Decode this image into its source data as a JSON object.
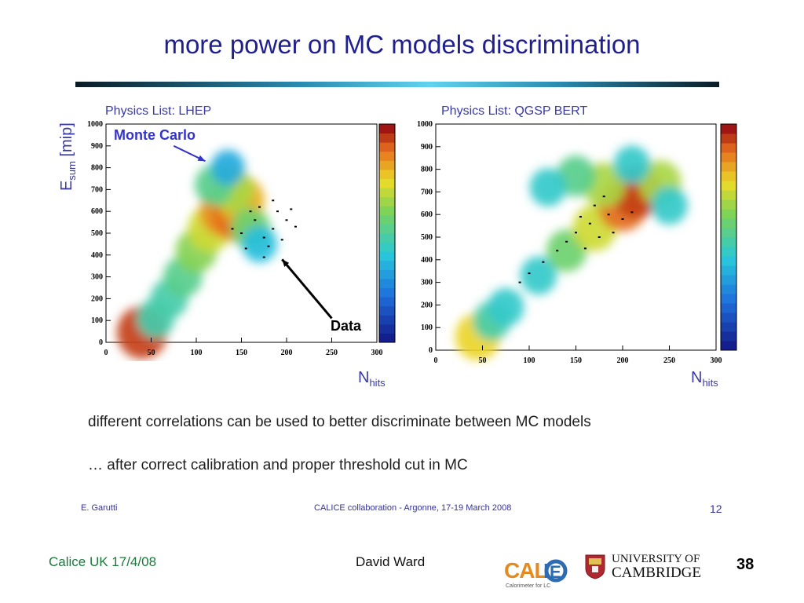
{
  "slide": {
    "title": "more power on MC models discrimination",
    "line1": "different correlations can be used to better discriminate between MC models",
    "line2": "… after correct calibration and proper threshold cut in MC",
    "inner_footer": {
      "author": "E. Garutti",
      "event": "CALICE collaboration - Argonne, 17-19 March 2008",
      "page": "12"
    }
  },
  "footer": {
    "left": "Calice UK 17/4/08",
    "center": "David Ward",
    "page": "38",
    "logo_calice_letters": "CALICE",
    "logo_calice_sub": "Calorimeter for LC",
    "logo_cambridge_line1": "UNIVERSITY OF",
    "logo_cambridge_line2": "CAMBRIDGE"
  },
  "colors": {
    "title": "#1f1f8f",
    "label": "#3a3aa6",
    "rule_dark": "#0b1b26",
    "rule_light": "#5fd3ee",
    "footer_left": "#1a7a3a"
  },
  "chart_data": [
    {
      "type": "heatmap",
      "title": "Physics List: LHEP",
      "xlabel": "N_hits",
      "ylabel": "E_sum [mip]",
      "xlim": [
        0,
        300
      ],
      "ylim": [
        0,
        1000
      ],
      "xticks": [
        0,
        50,
        100,
        150,
        200,
        250,
        300
      ],
      "yticks": [
        0,
        100,
        200,
        300,
        400,
        500,
        600,
        700,
        800,
        900,
        1000
      ],
      "colorbar": true,
      "annotations": [
        {
          "text": "Monte Carlo",
          "color": "#3434c8",
          "points_to": [
            110,
            830
          ]
        },
        {
          "text": "Data",
          "color": "#000000",
          "points_to": [
            195,
            380
          ]
        }
      ],
      "mc_density": [
        {
          "x": 40,
          "y": 45,
          "w": 1.0
        },
        {
          "x": 55,
          "y": 110,
          "w": 0.5
        },
        {
          "x": 70,
          "y": 200,
          "w": 0.5
        },
        {
          "x": 85,
          "y": 300,
          "w": 0.55
        },
        {
          "x": 100,
          "y": 420,
          "w": 0.65
        },
        {
          "x": 115,
          "y": 520,
          "w": 0.75
        },
        {
          "x": 130,
          "y": 600,
          "w": 0.9
        },
        {
          "x": 145,
          "y": 580,
          "w": 0.95
        },
        {
          "x": 150,
          "y": 650,
          "w": 0.85
        },
        {
          "x": 140,
          "y": 700,
          "w": 0.7
        },
        {
          "x": 120,
          "y": 720,
          "w": 0.55
        },
        {
          "x": 160,
          "y": 520,
          "w": 0.6
        },
        {
          "x": 170,
          "y": 450,
          "w": 0.4
        },
        {
          "x": 135,
          "y": 800,
          "w": 0.35
        }
      ],
      "data_points": [
        {
          "x": 150,
          "y": 500
        },
        {
          "x": 165,
          "y": 560
        },
        {
          "x": 175,
          "y": 480
        },
        {
          "x": 185,
          "y": 520
        },
        {
          "x": 190,
          "y": 600
        },
        {
          "x": 200,
          "y": 560
        },
        {
          "x": 180,
          "y": 440
        },
        {
          "x": 170,
          "y": 620
        },
        {
          "x": 155,
          "y": 430
        },
        {
          "x": 195,
          "y": 470
        },
        {
          "x": 205,
          "y": 610
        },
        {
          "x": 210,
          "y": 530
        },
        {
          "x": 160,
          "y": 600
        },
        {
          "x": 140,
          "y": 520
        },
        {
          "x": 185,
          "y": 650
        },
        {
          "x": 175,
          "y": 390
        }
      ]
    },
    {
      "type": "heatmap",
      "title": "Physics List: QGSP BERT",
      "xlabel": "N_hits",
      "ylabel": "",
      "xlim": [
        0,
        300
      ],
      "ylim": [
        0,
        1000
      ],
      "xticks": [
        0,
        50,
        100,
        150,
        200,
        250,
        300
      ],
      "yticks": [
        0,
        100,
        200,
        300,
        400,
        500,
        600,
        700,
        800,
        900,
        1000
      ],
      "colorbar": true,
      "mc_density": [
        {
          "x": 45,
          "y": 60,
          "w": 0.8
        },
        {
          "x": 60,
          "y": 130,
          "w": 0.5
        },
        {
          "x": 75,
          "y": 190,
          "w": 0.45
        },
        {
          "x": 110,
          "y": 330,
          "w": 0.45
        },
        {
          "x": 140,
          "y": 440,
          "w": 0.6
        },
        {
          "x": 170,
          "y": 540,
          "w": 0.75
        },
        {
          "x": 200,
          "y": 640,
          "w": 0.95
        },
        {
          "x": 215,
          "y": 700,
          "w": 1.0
        },
        {
          "x": 180,
          "y": 730,
          "w": 0.7
        },
        {
          "x": 150,
          "y": 770,
          "w": 0.55
        },
        {
          "x": 240,
          "y": 740,
          "w": 0.7
        },
        {
          "x": 120,
          "y": 720,
          "w": 0.45
        },
        {
          "x": 210,
          "y": 820,
          "w": 0.45
        },
        {
          "x": 250,
          "y": 640,
          "w": 0.45
        }
      ],
      "data_points": [
        {
          "x": 150,
          "y": 520
        },
        {
          "x": 165,
          "y": 560
        },
        {
          "x": 175,
          "y": 500
        },
        {
          "x": 185,
          "y": 600
        },
        {
          "x": 170,
          "y": 640
        },
        {
          "x": 200,
          "y": 580
        },
        {
          "x": 140,
          "y": 480
        },
        {
          "x": 155,
          "y": 590
        },
        {
          "x": 190,
          "y": 520
        },
        {
          "x": 130,
          "y": 440
        },
        {
          "x": 115,
          "y": 390
        },
        {
          "x": 100,
          "y": 340
        },
        {
          "x": 90,
          "y": 300
        },
        {
          "x": 180,
          "y": 680
        },
        {
          "x": 210,
          "y": 610
        },
        {
          "x": 160,
          "y": 450
        }
      ]
    }
  ]
}
